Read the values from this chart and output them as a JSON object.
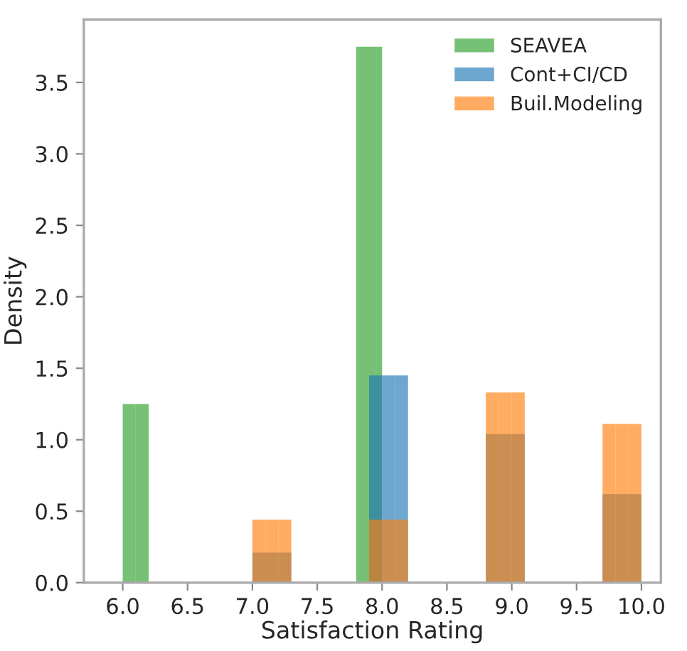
{
  "chart_data": {
    "type": "histogram",
    "xlabel": "Satisfaction Rating",
    "ylabel": "Density",
    "bins": [
      6.0,
      6.1,
      6.2,
      6.3,
      6.4,
      6.5,
      6.6,
      6.7,
      6.8,
      6.9,
      7.0,
      7.1,
      7.2,
      7.3,
      7.4,
      7.5,
      7.6,
      7.7,
      7.8,
      7.9,
      8.0,
      8.1,
      8.2,
      8.3,
      8.4,
      8.5,
      8.6,
      8.7,
      8.8,
      8.9,
      9.0,
      9.1,
      9.2,
      9.3,
      9.4,
      9.5,
      9.6,
      9.7,
      9.8,
      9.9,
      10.0
    ],
    "series": [
      {
        "name": "SEAVEA",
        "color": "#2ca02c",
        "values": [
          1.25,
          1.25,
          0,
          0,
          0,
          0,
          0,
          0,
          0,
          0,
          0,
          0,
          0,
          0,
          0,
          0,
          0,
          0,
          3.75,
          3.75,
          0,
          0,
          0,
          0,
          0,
          0,
          0,
          0,
          0,
          0,
          0,
          0,
          0,
          0,
          0,
          0,
          0,
          0,
          0,
          0
        ]
      },
      {
        "name": "Cont+CI/CD",
        "color": "#1f77b4",
        "values": [
          0,
          0,
          0,
          0,
          0,
          0,
          0,
          0,
          0,
          0,
          0.21,
          0.21,
          0.21,
          0,
          0,
          0,
          0,
          0,
          0,
          1.45,
          1.45,
          1.45,
          0,
          0,
          0,
          0,
          0,
          0,
          1.04,
          1.04,
          1.04,
          0,
          0,
          0,
          0,
          0,
          0,
          0.62,
          0.62,
          0.62
        ]
      },
      {
        "name": "Buil.Modeling",
        "color": "#ff7f0e",
        "values": [
          0,
          0,
          0,
          0,
          0,
          0,
          0,
          0,
          0,
          0,
          0.44,
          0.44,
          0.44,
          0,
          0,
          0,
          0,
          0,
          0,
          0.44,
          0.44,
          0.44,
          0,
          0,
          0,
          0,
          0,
          0,
          1.33,
          1.33,
          1.33,
          0,
          0,
          0,
          0,
          0,
          0,
          1.11,
          1.11,
          1.11
        ]
      }
    ],
    "xlim": [
      5.7,
      10.15
    ],
    "ylim": [
      0,
      3.94
    ],
    "xticks": [
      {
        "value": 6.0,
        "label": "6.0"
      },
      {
        "value": 6.5,
        "label": "6.5"
      },
      {
        "value": 7.0,
        "label": "7.0"
      },
      {
        "value": 7.5,
        "label": "7.5"
      },
      {
        "value": 8.0,
        "label": "8.0"
      },
      {
        "value": 8.5,
        "label": "8.5"
      },
      {
        "value": 9.0,
        "label": "9.0"
      },
      {
        "value": 9.5,
        "label": "9.5"
      },
      {
        "value": 10.0,
        "label": "10.0"
      }
    ],
    "yticks": [
      {
        "value": 0,
        "label": "0.0"
      },
      {
        "value": 0.5,
        "label": "0.5"
      },
      {
        "value": 1.0,
        "label": "1.0"
      },
      {
        "value": 1.5,
        "label": "1.5"
      },
      {
        "value": 2.0,
        "label": "2.0"
      },
      {
        "value": 2.5,
        "label": "2.5"
      },
      {
        "value": 3.0,
        "label": "3.0"
      },
      {
        "value": 3.5,
        "label": "3.5"
      }
    ],
    "grid": false,
    "legend": "top right"
  }
}
